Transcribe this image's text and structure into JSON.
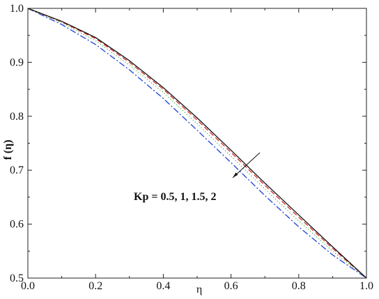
{
  "chart_data": {
    "type": "line",
    "xlabel": "η",
    "ylabel": "f (η)",
    "xlim": [
      0.0,
      1.0
    ],
    "ylim": [
      0.5,
      1.0
    ],
    "xticks": [
      "0.0",
      "0.2",
      "0.4",
      "0.6",
      "0.8",
      "1.0"
    ],
    "yticks": [
      "0.5",
      "0.6",
      "0.7",
      "0.8",
      "0.9",
      "1.0"
    ],
    "x": [
      0.0,
      0.1,
      0.2,
      0.3,
      0.4,
      0.5,
      0.6,
      0.7,
      0.8,
      0.9,
      1.0
    ],
    "series": [
      {
        "color": "#111111",
        "dash": "",
        "values": [
          1.0,
          0.976,
          0.946,
          0.903,
          0.853,
          0.797,
          0.737,
          0.676,
          0.617,
          0.558,
          0.5
        ]
      },
      {
        "color": "#d62728",
        "dash": "7,4",
        "values": [
          1.0,
          0.975,
          0.944,
          0.9,
          0.85,
          0.793,
          0.733,
          0.672,
          0.613,
          0.555,
          0.5
        ]
      },
      {
        "color": "#2ca02c",
        "dash": "1,3",
        "values": [
          1.0,
          0.973,
          0.94,
          0.895,
          0.844,
          0.786,
          0.726,
          0.665,
          0.606,
          0.55,
          0.5
        ]
      },
      {
        "color": "#1f3fd6",
        "dash": "9,3,2,3",
        "values": [
          1.0,
          0.97,
          0.933,
          0.886,
          0.833,
          0.774,
          0.714,
          0.653,
          0.595,
          0.543,
          0.5
        ]
      }
    ],
    "annotation": "Kp = 0.5, 1, 1.5, 2",
    "grid": false,
    "legend": "none"
  }
}
